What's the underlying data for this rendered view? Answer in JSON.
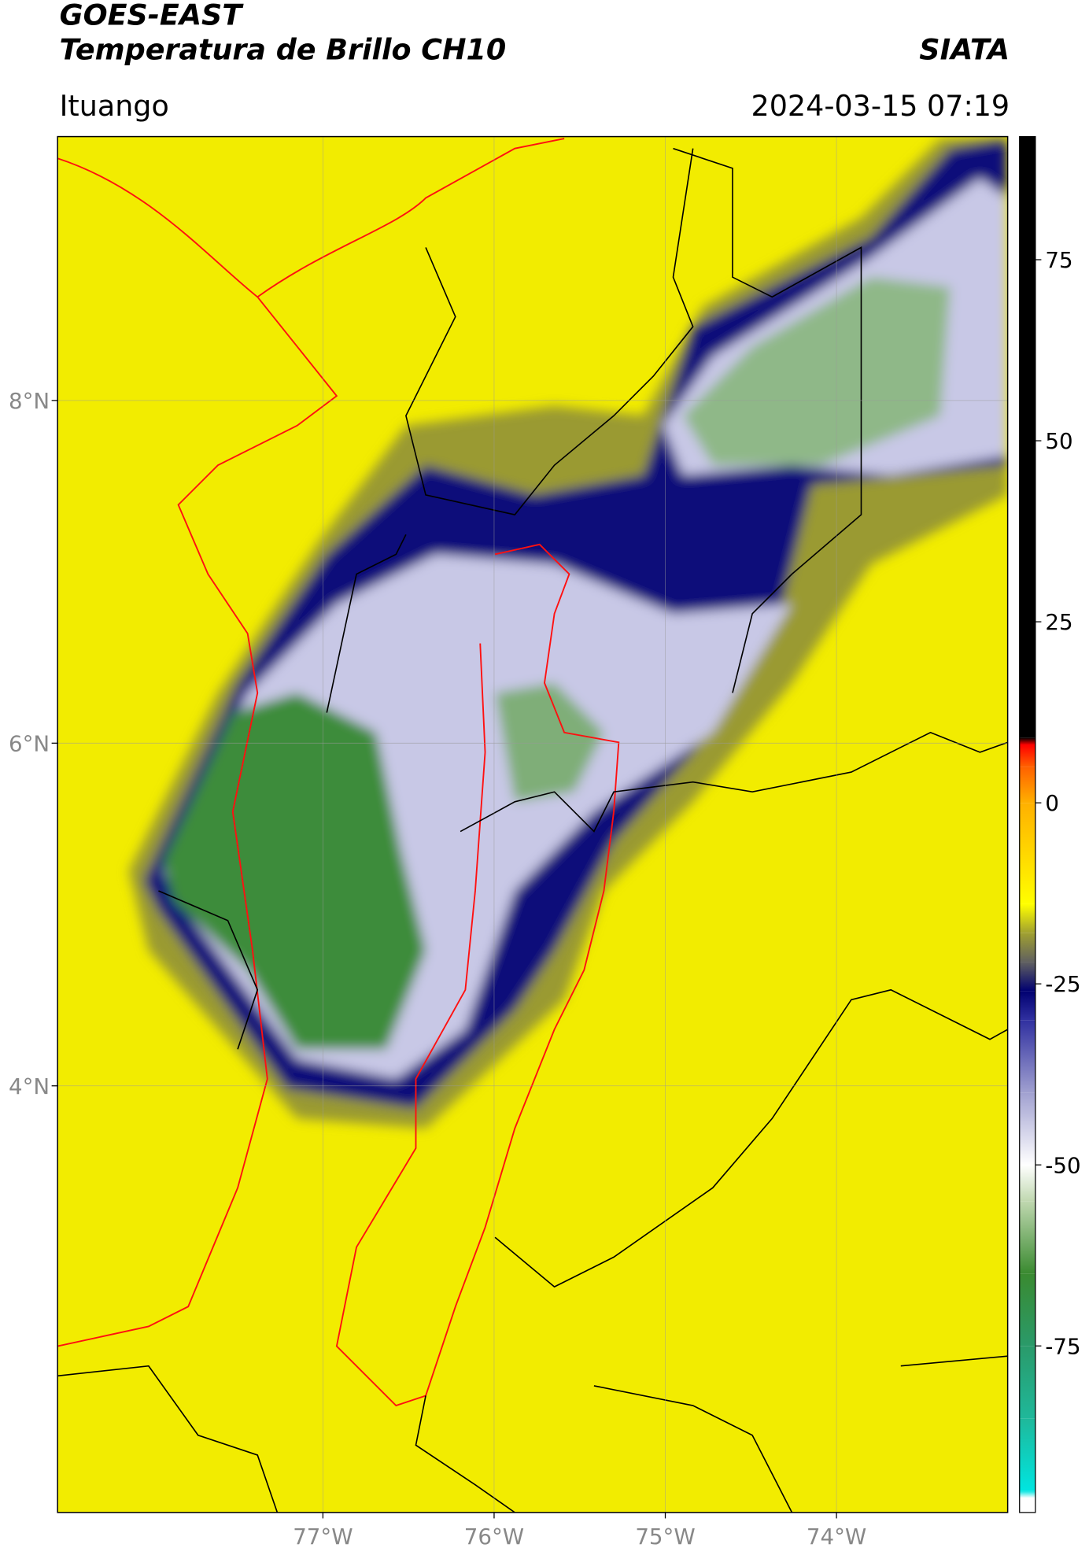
{
  "chart_data": {
    "type": "map",
    "title": "GOES-EAST",
    "subtitle": "Temperatura de Brillo CH10",
    "source": "SIATA",
    "location": "Ituango",
    "datetime": "2024-03-15 07:19",
    "xlim": [
      -78.55,
      -73.0
    ],
    "ylim": [
      1.51,
      9.54
    ],
    "xticks": [
      {
        "value": -77,
        "label": "77°W"
      },
      {
        "value": -76,
        "label": "76°W"
      },
      {
        "value": -75,
        "label": "75°W"
      },
      {
        "value": -74,
        "label": "74°W"
      }
    ],
    "yticks": [
      {
        "value": 8,
        "label": "8°N"
      },
      {
        "value": 6,
        "label": "6°N"
      },
      {
        "value": 4,
        "label": "4°N"
      }
    ],
    "grid": true,
    "clim": [
      -98,
      92
    ],
    "cticks": [
      75,
      50,
      25,
      0,
      -25,
      -50,
      -75
    ],
    "colorscale": [
      {
        "value": -98,
        "color": "#ffffff"
      },
      {
        "value": -96,
        "color": "#ffffff"
      },
      {
        "value": -95,
        "color": "#00e5e0"
      },
      {
        "value": -85,
        "color": "#1fb89a"
      },
      {
        "value": -75,
        "color": "#2a9a6a"
      },
      {
        "value": -65,
        "color": "#3a8a30"
      },
      {
        "value": -55,
        "color": "#c0d8b0"
      },
      {
        "value": -50,
        "color": "#ffffff"
      },
      {
        "value": -40,
        "color": "#a0a0d0"
      },
      {
        "value": -30,
        "color": "#3030a0"
      },
      {
        "value": -26,
        "color": "#000070"
      },
      {
        "value": -22,
        "color": "#606060"
      },
      {
        "value": -18,
        "color": "#a0a030"
      },
      {
        "value": -14,
        "color": "#ffff00"
      },
      {
        "value": 0,
        "color": "#ffb000"
      },
      {
        "value": 5,
        "color": "#ff6000"
      },
      {
        "value": 8,
        "color": "#ff0000"
      },
      {
        "value": 9,
        "color": "#000000"
      },
      {
        "value": 92,
        "color": "#000000"
      }
    ]
  }
}
